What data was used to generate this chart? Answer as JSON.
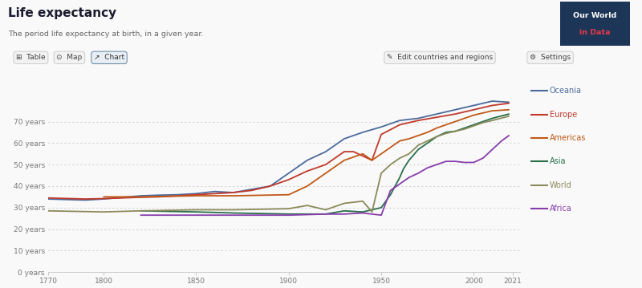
{
  "title": "Life expectancy",
  "subtitle": "The period life expectancy at birth, in a given year.",
  "background_color": "#f9f9f9",
  "plot_bg_color": "#f9f9f9",
  "x_min": 1770,
  "x_max": 2025,
  "y_min": 0,
  "y_max": 80,
  "yticks": [
    0,
    10,
    20,
    30,
    40,
    50,
    60,
    70
  ],
  "ytick_labels": [
    "0 years",
    "10 years",
    "20 years",
    "30 years",
    "40 years",
    "50 years",
    "60 years",
    "70 years"
  ],
  "xticks": [
    1770,
    1800,
    1850,
    1900,
    1950,
    2000,
    2021
  ],
  "regions": {
    "Oceania": {
      "color": "#4C6A9C",
      "data": [
        [
          1770,
          34.0
        ],
        [
          1790,
          33.5
        ],
        [
          1800,
          34.0
        ],
        [
          1820,
          35.5
        ],
        [
          1830,
          35.8
        ],
        [
          1840,
          36.0
        ],
        [
          1850,
          36.5
        ],
        [
          1860,
          37.5
        ],
        [
          1870,
          37.0
        ],
        [
          1880,
          38.5
        ],
        [
          1890,
          40.0
        ],
        [
          1900,
          46.0
        ],
        [
          1910,
          52.0
        ],
        [
          1920,
          56.0
        ],
        [
          1930,
          62.0
        ],
        [
          1940,
          65.0
        ],
        [
          1950,
          67.5
        ],
        [
          1960,
          70.5
        ],
        [
          1970,
          71.5
        ],
        [
          1980,
          73.5
        ],
        [
          1990,
          75.5
        ],
        [
          2000,
          77.5
        ],
        [
          2010,
          79.5
        ],
        [
          2019,
          79.0
        ]
      ]
    },
    "Europe": {
      "color": "#C0392B",
      "data": [
        [
          1770,
          34.5
        ],
        [
          1790,
          34.0
        ],
        [
          1800,
          34.2
        ],
        [
          1820,
          34.8
        ],
        [
          1830,
          35.0
        ],
        [
          1840,
          35.5
        ],
        [
          1850,
          36.0
        ],
        [
          1860,
          36.5
        ],
        [
          1870,
          37.0
        ],
        [
          1880,
          38.0
        ],
        [
          1890,
          40.0
        ],
        [
          1900,
          43.0
        ],
        [
          1910,
          47.0
        ],
        [
          1920,
          50.0
        ],
        [
          1930,
          56.0
        ],
        [
          1935,
          56.0
        ],
        [
          1940,
          54.0
        ],
        [
          1945,
          52.0
        ],
        [
          1950,
          64.0
        ],
        [
          1960,
          68.5
        ],
        [
          1970,
          70.5
        ],
        [
          1980,
          72.0
        ],
        [
          1990,
          73.5
        ],
        [
          2000,
          75.5
        ],
        [
          2010,
          77.5
        ],
        [
          2019,
          78.5
        ]
      ]
    },
    "Americas": {
      "color": "#C05917",
      "data": [
        [
          1800,
          35.0
        ],
        [
          1820,
          35.0
        ],
        [
          1850,
          35.5
        ],
        [
          1870,
          35.5
        ],
        [
          1900,
          36.0
        ],
        [
          1910,
          40.0
        ],
        [
          1920,
          46.0
        ],
        [
          1930,
          52.0
        ],
        [
          1940,
          55.0
        ],
        [
          1945,
          52.0
        ],
        [
          1950,
          55.0
        ],
        [
          1955,
          58.0
        ],
        [
          1960,
          61.0
        ],
        [
          1965,
          62.0
        ],
        [
          1970,
          63.5
        ],
        [
          1975,
          65.0
        ],
        [
          1980,
          67.0
        ],
        [
          1985,
          68.5
        ],
        [
          1990,
          70.0
        ],
        [
          1995,
          71.5
        ],
        [
          2000,
          73.0
        ],
        [
          2010,
          75.0
        ],
        [
          2019,
          75.5
        ]
      ]
    },
    "Asia": {
      "color": "#286F4A",
      "data": [
        [
          1820,
          28.5
        ],
        [
          1850,
          28.0
        ],
        [
          1870,
          27.5
        ],
        [
          1900,
          27.0
        ],
        [
          1920,
          27.0
        ],
        [
          1930,
          28.5
        ],
        [
          1940,
          28.0
        ],
        [
          1950,
          30.0
        ],
        [
          1955,
          36.0
        ],
        [
          1960,
          44.0
        ],
        [
          1962,
          48.0
        ],
        [
          1965,
          52.0
        ],
        [
          1970,
          57.0
        ],
        [
          1975,
          60.0
        ],
        [
          1980,
          63.0
        ],
        [
          1985,
          65.0
        ],
        [
          1990,
          65.5
        ],
        [
          1995,
          67.0
        ],
        [
          2000,
          68.5
        ],
        [
          2005,
          70.0
        ],
        [
          2010,
          71.5
        ],
        [
          2019,
          73.5
        ]
      ]
    },
    "World": {
      "color": "#8A8A5A",
      "data": [
        [
          1770,
          28.5
        ],
        [
          1800,
          28.0
        ],
        [
          1820,
          28.5
        ],
        [
          1850,
          29.0
        ],
        [
          1870,
          29.0
        ],
        [
          1900,
          29.5
        ],
        [
          1910,
          31.0
        ],
        [
          1920,
          29.0
        ],
        [
          1930,
          32.0
        ],
        [
          1940,
          33.0
        ],
        [
          1945,
          28.0
        ],
        [
          1950,
          46.0
        ],
        [
          1955,
          50.0
        ],
        [
          1960,
          53.0
        ],
        [
          1965,
          55.0
        ],
        [
          1970,
          59.0
        ],
        [
          1975,
          61.0
        ],
        [
          1980,
          63.0
        ],
        [
          1985,
          64.5
        ],
        [
          1990,
          65.5
        ],
        [
          1995,
          66.5
        ],
        [
          2000,
          68.0
        ],
        [
          2005,
          69.5
        ],
        [
          2010,
          70.5
        ],
        [
          2019,
          72.5
        ]
      ]
    },
    "Africa": {
      "color": "#883DAC",
      "data": [
        [
          1820,
          26.5
        ],
        [
          1850,
          26.5
        ],
        [
          1870,
          26.5
        ],
        [
          1900,
          26.5
        ],
        [
          1920,
          27.0
        ],
        [
          1930,
          27.0
        ],
        [
          1940,
          27.5
        ],
        [
          1950,
          26.5
        ],
        [
          1955,
          38.0
        ],
        [
          1960,
          41.0
        ],
        [
          1965,
          44.0
        ],
        [
          1970,
          46.0
        ],
        [
          1975,
          48.5
        ],
        [
          1980,
          50.0
        ],
        [
          1985,
          51.5
        ],
        [
          1990,
          51.5
        ],
        [
          1995,
          51.0
        ],
        [
          2000,
          51.0
        ],
        [
          2005,
          53.0
        ],
        [
          2010,
          57.0
        ],
        [
          2015,
          61.0
        ],
        [
          2019,
          63.5
        ]
      ]
    }
  },
  "legend_order": [
    "Oceania",
    "Europe",
    "Americas",
    "Asia",
    "World",
    "Africa"
  ],
  "owid_badge_bg": "#1d3557",
  "owid_badge_text1": "Our World",
  "owid_badge_text2": "in Data",
  "owid_badge_text2_color": "#e63946",
  "title_color": "#1a1a2e",
  "subtitle_color": "#666666",
  "button_bg": "#f2f2f2",
  "button_border": "#cccccc",
  "chart_button_bg": "#e8eef4",
  "chart_button_border": "#7090aa",
  "grid_color": "#bbbbbb",
  "tick_color": "#777777",
  "axis_color": "#cccccc"
}
